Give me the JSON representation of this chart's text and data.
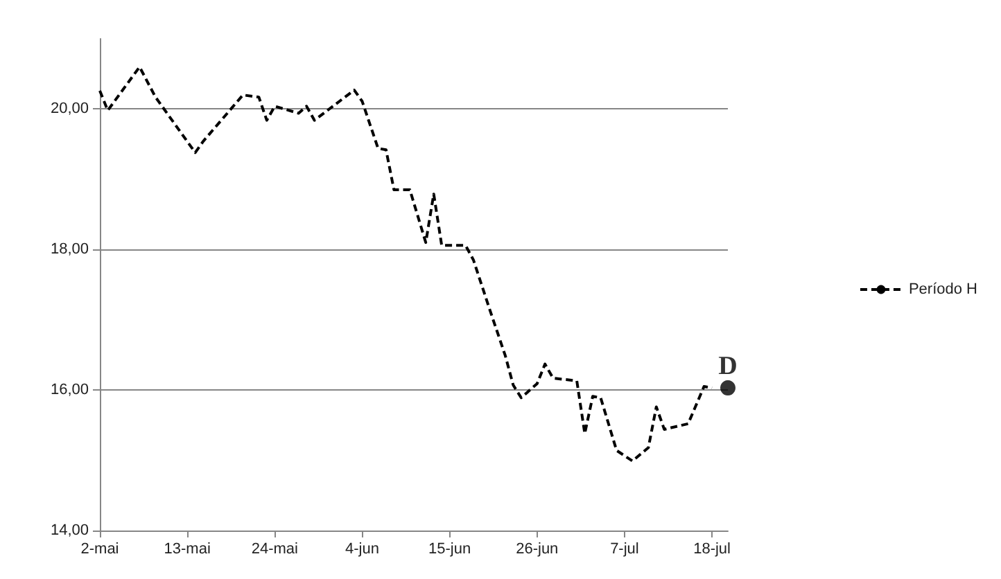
{
  "chart_data": {
    "type": "line",
    "line_style": "dashed",
    "marker": "none",
    "grid": "y",
    "legend": "right",
    "xlim": [
      "--05-02",
      "--07-20"
    ],
    "xticks": [
      {
        "value": "--05-02",
        "label": "2-mai"
      },
      {
        "value": "--05-13",
        "label": "13-mai"
      },
      {
        "value": "--05-24",
        "label": "24-mai"
      },
      {
        "value": "--06-04",
        "label": "4-jun"
      },
      {
        "value": "--06-15",
        "label": "15-jun"
      },
      {
        "value": "--06-26",
        "label": "26-jun"
      },
      {
        "value": "--07-07",
        "label": "7-jul"
      },
      {
        "value": "--07-18",
        "label": "18-jul"
      }
    ],
    "ylim": [
      14,
      21
    ],
    "yticks": [
      {
        "value": 14,
        "label": "14,00"
      },
      {
        "value": 16,
        "label": "16,00"
      },
      {
        "value": 18,
        "label": "18,00"
      },
      {
        "value": 20,
        "label": "20,00"
      }
    ],
    "series": [
      {
        "name": "Período H",
        "color": "#000000",
        "x": [
          "--05-02",
          "--05-03",
          "--05-07",
          "--05-09",
          "--05-14",
          "--05-15",
          "--05-20",
          "--05-22",
          "--05-23",
          "--05-24",
          "--05-27",
          "--05-28",
          "--05-29",
          "--06-03",
          "--06-04",
          "--06-06",
          "--06-07",
          "--06-08",
          "--06-10",
          "--06-12",
          "--06-13",
          "--06-14",
          "--06-17",
          "--06-18",
          "--06-20",
          "--06-22",
          "--06-23",
          "--06-24",
          "--06-26",
          "--06-27",
          "--06-28",
          "--07-01",
          "--07-02",
          "--07-03",
          "--07-04",
          "--07-06",
          "--07-08",
          "--07-10",
          "--07-11",
          "--07-12",
          "--07-15",
          "--07-17",
          "--07-18"
        ],
        "values": [
          20.26,
          19.98,
          20.6,
          20.17,
          19.38,
          19.54,
          20.2,
          20.17,
          19.84,
          20.04,
          19.94,
          20.04,
          19.84,
          20.27,
          20.11,
          19.44,
          19.42,
          18.85,
          18.85,
          18.1,
          18.79,
          18.06,
          18.06,
          17.85,
          17.16,
          16.49,
          16.07,
          15.89,
          16.09,
          16.37,
          16.17,
          16.13,
          15.38,
          15.91,
          15.89,
          15.14,
          14.99,
          15.18,
          15.76,
          15.44,
          15.52,
          16.05,
          16.03
        ]
      },
      {
        "type": "scatter",
        "marker": "circle",
        "color": "#000000",
        "x": [
          "--07-20"
        ],
        "values": [
          16.03
        ]
      }
    ],
    "annotations": [
      {
        "text": "D",
        "x": "--07-20",
        "y": 16.03
      }
    ]
  }
}
